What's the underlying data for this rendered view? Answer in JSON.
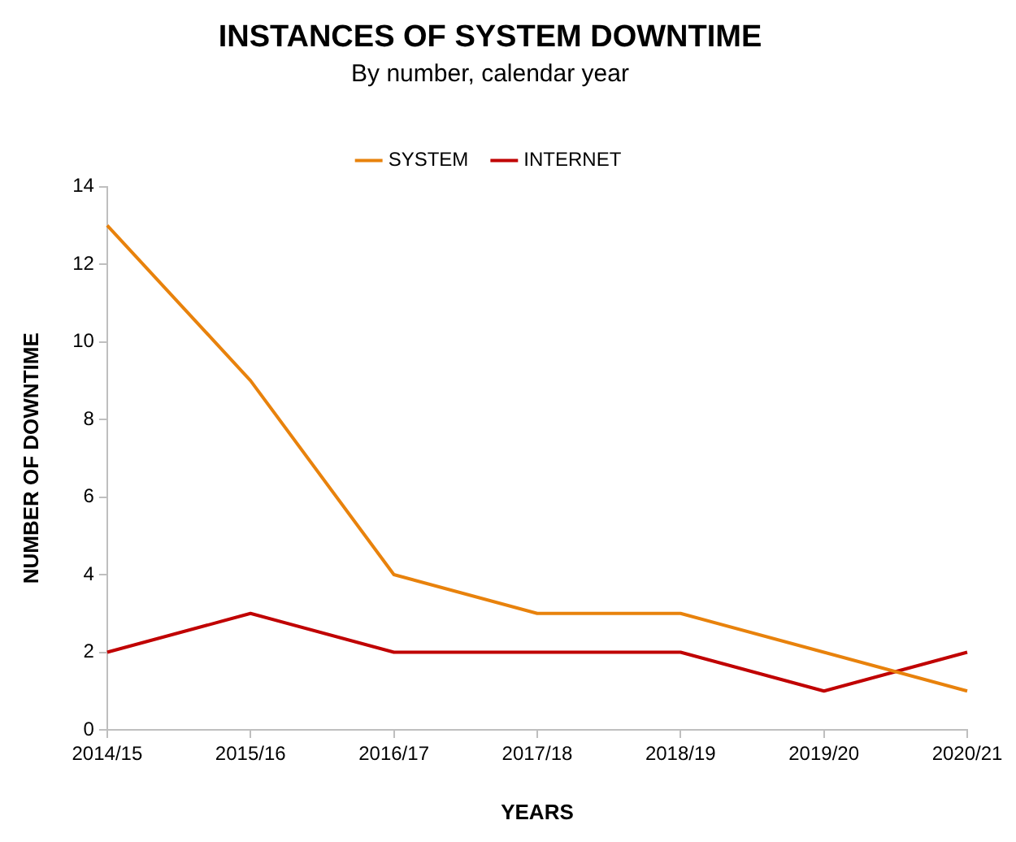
{
  "chart_data": {
    "type": "line",
    "title": "INSTANCES OF SYSTEM DOWNTIME",
    "subtitle": "By number, calendar year",
    "xlabel": "YEARS",
    "ylabel": "NUMBER OF DOWNTIME",
    "categories": [
      "2014/15",
      "2015/16",
      "2016/17",
      "2017/18",
      "2018/19",
      "2019/20",
      "2020/21"
    ],
    "series": [
      {
        "name": "SYSTEM",
        "color": "#e8820c",
        "values": [
          13,
          9,
          4,
          3,
          3,
          2,
          1
        ]
      },
      {
        "name": "INTERNET",
        "color": "#c00000",
        "values": [
          2,
          3,
          2,
          2,
          2,
          1,
          2
        ]
      }
    ],
    "ylim": [
      0,
      14
    ],
    "yticks": [
      0,
      2,
      4,
      6,
      8,
      10,
      12,
      14
    ],
    "grid": false,
    "legend": "top",
    "marker": "none",
    "line_style": "solid"
  }
}
